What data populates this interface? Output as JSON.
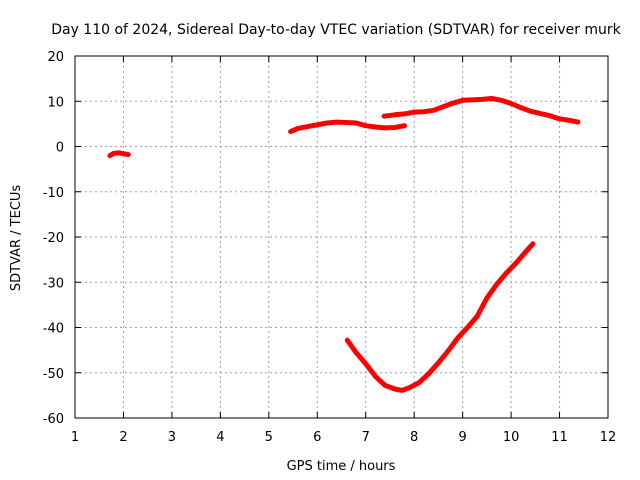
{
  "chart_data": {
    "type": "line",
    "title": "Day 110 of 2024, Sidereal Day-to-day VTEC variation (SDTVAR) for receiver murk",
    "xlabel": "GPS time / hours",
    "ylabel": "SDTVAR / TECUs",
    "xlim": [
      1,
      12
    ],
    "ylim": [
      -60,
      20
    ],
    "xticks": [
      1,
      2,
      3,
      4,
      5,
      6,
      7,
      8,
      9,
      10,
      11,
      12
    ],
    "yticks": [
      20,
      10,
      0,
      -10,
      -20,
      -30,
      -40,
      -50,
      -60
    ],
    "grid": true,
    "colors": {
      "series": "#ff0000",
      "grid": "#a0a0a0"
    },
    "series": [
      {
        "segments": [
          [
            [
              1.72,
              -2.0
            ],
            [
              1.8,
              -1.5
            ],
            [
              1.9,
              -1.4
            ],
            [
              2.0,
              -1.6
            ],
            [
              2.1,
              -1.8
            ]
          ],
          [
            [
              5.45,
              3.3
            ],
            [
              5.6,
              4.0
            ],
            [
              5.8,
              4.4
            ],
            [
              6.0,
              4.8
            ],
            [
              6.2,
              5.2
            ],
            [
              6.4,
              5.4
            ],
            [
              6.6,
              5.3
            ],
            [
              6.8,
              5.2
            ],
            [
              7.0,
              4.6
            ],
            [
              7.2,
              4.3
            ],
            [
              7.4,
              4.1
            ],
            [
              7.6,
              4.2
            ],
            [
              7.8,
              4.6
            ]
          ],
          [
            [
              7.38,
              6.7
            ],
            [
              7.6,
              7.0
            ],
            [
              7.8,
              7.2
            ],
            [
              8.0,
              7.6
            ],
            [
              8.2,
              7.7
            ],
            [
              8.4,
              8.0
            ],
            [
              8.6,
              8.8
            ],
            [
              8.8,
              9.6
            ],
            [
              9.0,
              10.2
            ],
            [
              9.2,
              10.3
            ],
            [
              9.4,
              10.4
            ],
            [
              9.6,
              10.6
            ],
            [
              9.8,
              10.2
            ],
            [
              10.0,
              9.5
            ],
            [
              10.2,
              8.6
            ],
            [
              10.4,
              7.8
            ],
            [
              10.6,
              7.3
            ],
            [
              10.8,
              6.8
            ],
            [
              11.0,
              6.1
            ],
            [
              11.2,
              5.8
            ],
            [
              11.38,
              5.4
            ]
          ],
          [
            [
              6.62,
              -42.8
            ],
            [
              6.8,
              -45.5
            ],
            [
              7.0,
              -48.0
            ],
            [
              7.2,
              -50.8
            ],
            [
              7.4,
              -52.8
            ],
            [
              7.6,
              -53.6
            ],
            [
              7.75,
              -53.9
            ],
            [
              7.9,
              -53.3
            ],
            [
              8.1,
              -52.2
            ],
            [
              8.3,
              -50.2
            ],
            [
              8.5,
              -47.8
            ],
            [
              8.7,
              -45.2
            ],
            [
              8.9,
              -42.3
            ],
            [
              9.1,
              -40.0
            ],
            [
              9.3,
              -37.5
            ],
            [
              9.5,
              -33.5
            ],
            [
              9.7,
              -30.5
            ],
            [
              9.9,
              -28.0
            ],
            [
              10.1,
              -25.8
            ],
            [
              10.3,
              -23.3
            ],
            [
              10.45,
              -21.5
            ]
          ]
        ]
      }
    ]
  }
}
